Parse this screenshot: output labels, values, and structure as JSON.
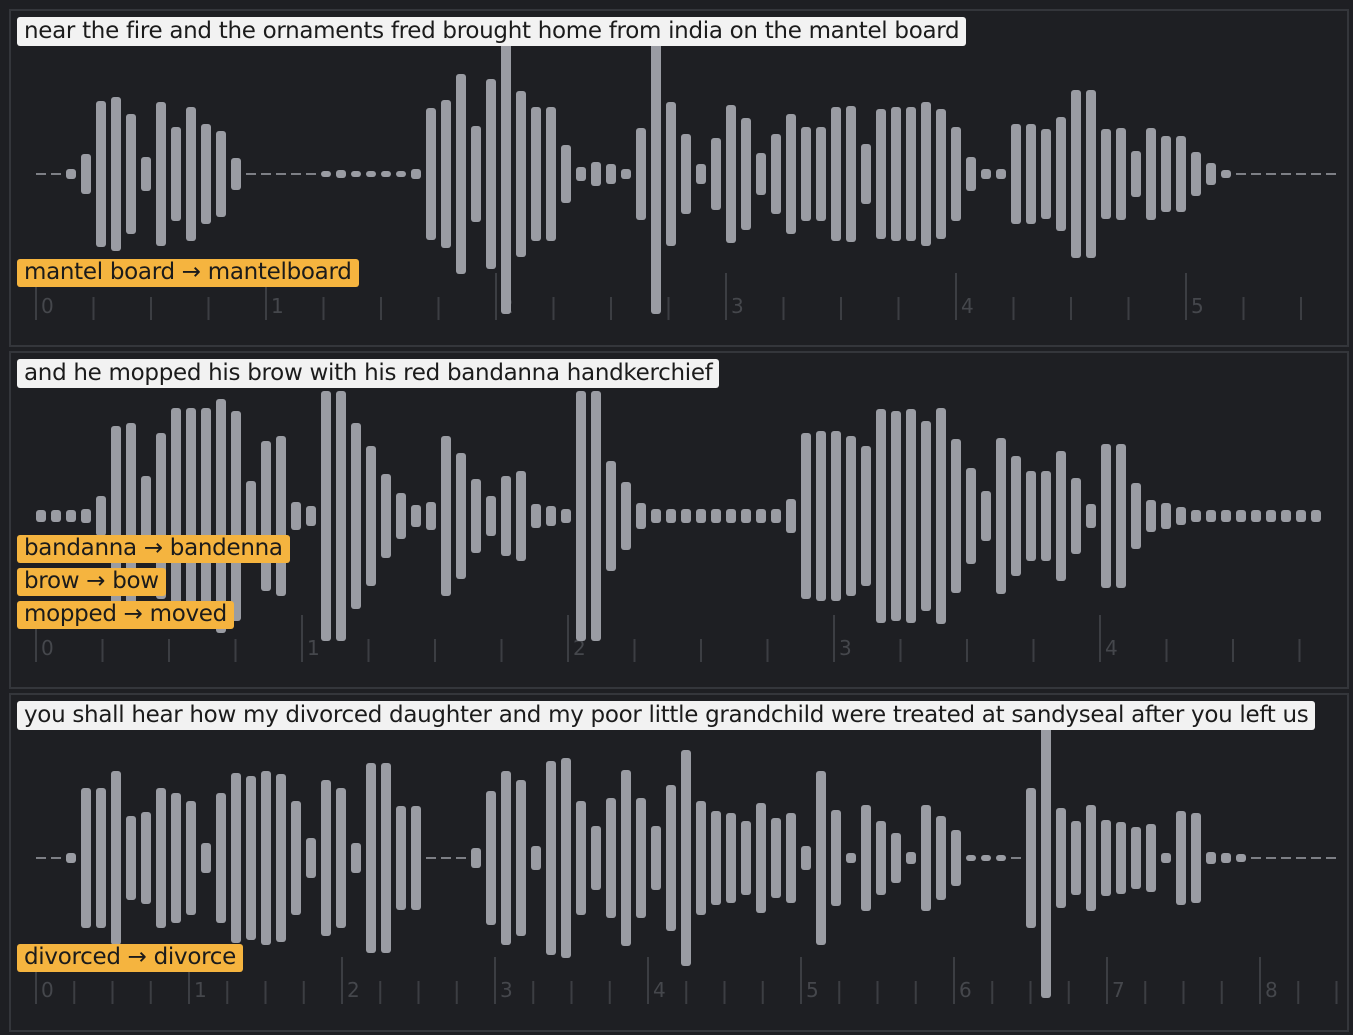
{
  "colors": {
    "bar": "#9a9ca3",
    "tick": "#3c3e43",
    "tag": "#f5b43f",
    "caption_bg": "#f2f2f2",
    "background": "#1e1f23"
  },
  "panels": [
    {
      "caption": "near the fire and the ornaments fred brought home from india on the mantel board",
      "corrections": [
        {
          "label": "mantel board → mantelboard"
        }
      ],
      "seconds": [
        0,
        1,
        2,
        3,
        4,
        5
      ],
      "subdivisions": 4,
      "amplitudes": [
        0,
        0,
        5,
        20,
        73,
        77,
        60,
        17,
        72,
        47,
        67,
        50,
        43,
        16,
        0,
        0,
        0,
        0,
        0,
        3,
        4,
        3,
        2,
        2,
        2,
        5,
        66,
        74,
        100,
        48,
        95,
        140,
        83,
        67,
        67,
        29,
        7,
        12,
        10,
        5,
        46,
        140,
        72,
        40,
        10,
        36,
        69,
        56,
        21,
        40,
        60,
        47,
        47,
        67,
        68,
        30,
        65,
        67,
        67,
        72,
        65,
        47,
        17,
        5,
        5,
        50,
        50,
        45,
        57,
        84,
        84,
        45,
        46,
        23,
        46,
        38,
        38,
        22,
        11,
        4,
        0,
        0,
        0,
        0,
        0,
        0,
        0
      ]
    },
    {
      "caption": "and he mopped his brow with his red bandanna handkerchief",
      "corrections": [
        {
          "label": "bandanna → bandenna"
        },
        {
          "label": "brow → bow"
        },
        {
          "label": "mopped → moved"
        }
      ],
      "seconds": [
        0,
        1,
        2,
        3,
        4
      ],
      "subdivisions": 4,
      "amplitudes": [
        6,
        6,
        6,
        7,
        20,
        90,
        93,
        40,
        83,
        108,
        108,
        108,
        117,
        105,
        35,
        75,
        80,
        14,
        10,
        125,
        125,
        93,
        70,
        42,
        23,
        11,
        14,
        80,
        63,
        37,
        20,
        40,
        45,
        12,
        10,
        7,
        125,
        125,
        55,
        34,
        13,
        7,
        7,
        7,
        7,
        7,
        7,
        7,
        7,
        7,
        17,
        83,
        85,
        85,
        80,
        70,
        107,
        105,
        107,
        95,
        108,
        77,
        48,
        25,
        78,
        60,
        45,
        45,
        65,
        38,
        12,
        72,
        72,
        33,
        16,
        13,
        9,
        6,
        6,
        6,
        6,
        6,
        6,
        6,
        6,
        6
      ]
    },
    {
      "caption": "you shall hear how my divorced daughter and my poor little grandchild were treated at sandyseal after you left us",
      "corrections": [
        {
          "label": "divorced → divorce"
        }
      ],
      "seconds": [
        0,
        1,
        2,
        3,
        4,
        5,
        6,
        7,
        8
      ],
      "subdivisions": 4,
      "amplitudes": [
        0,
        0,
        5,
        70,
        70,
        87,
        42,
        46,
        70,
        65,
        57,
        15,
        65,
        85,
        82,
        87,
        84,
        57,
        20,
        78,
        70,
        15,
        95,
        95,
        52,
        52,
        0,
        0,
        0,
        10,
        67,
        87,
        78,
        12,
        97,
        100,
        57,
        32,
        60,
        88,
        60,
        32,
        73,
        108,
        57,
        47,
        45,
        37,
        55,
        40,
        45,
        12,
        87,
        48,
        5,
        53,
        37,
        25,
        6,
        53,
        42,
        28,
        3,
        3,
        3,
        0,
        70,
        140,
        50,
        37,
        53,
        38,
        36,
        31,
        34,
        5,
        47,
        45,
        6,
        5,
        4,
        0,
        0,
        0,
        0,
        0,
        0
      ]
    }
  ]
}
